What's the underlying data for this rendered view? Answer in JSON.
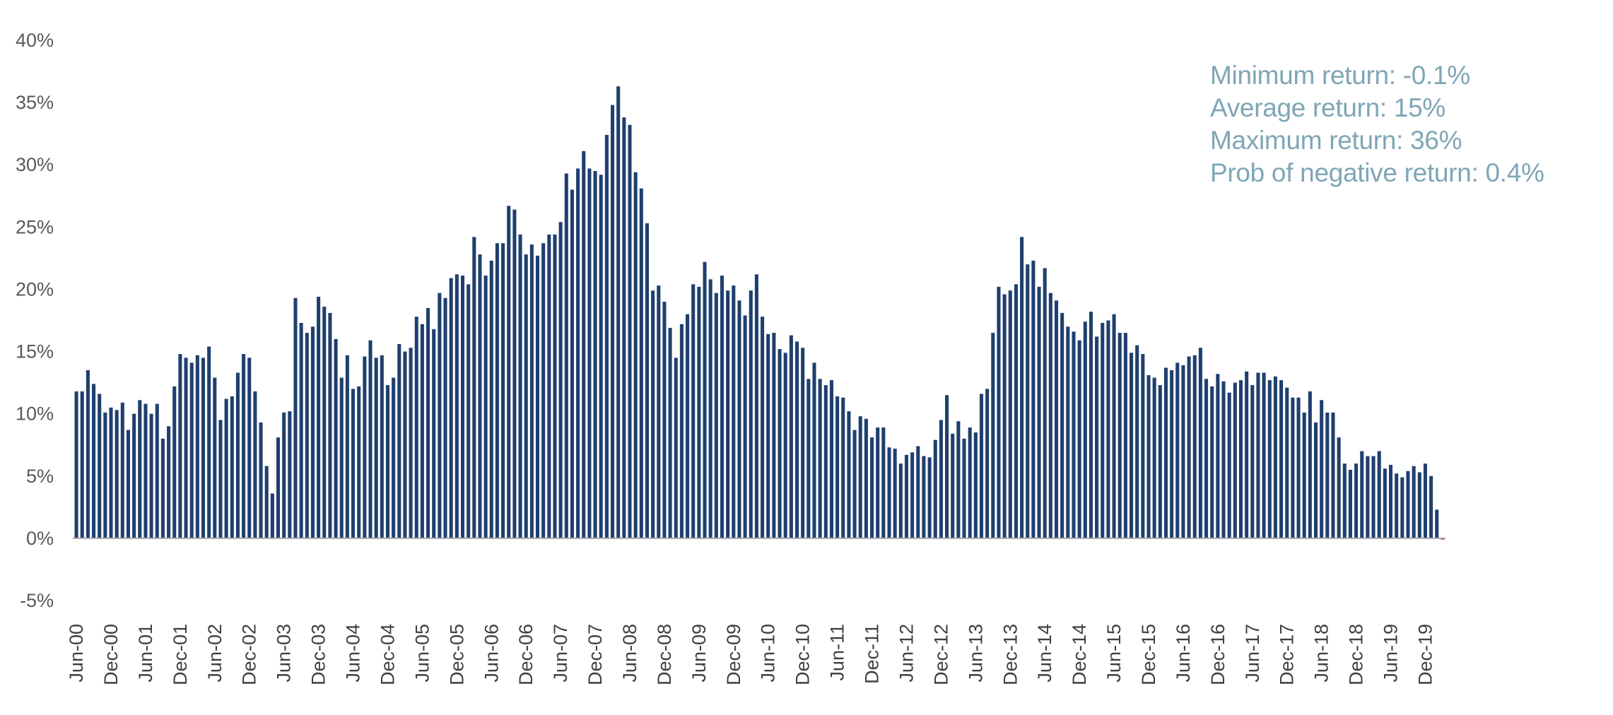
{
  "chart_data": {
    "type": "bar",
    "title": "",
    "xlabel": "",
    "ylabel": "",
    "ylim": [
      -5,
      40
    ],
    "ytick_step": 5,
    "ytick_format": "percent",
    "grid": false,
    "bar_color": "#1f3f6e",
    "axis_color": "#a6a6a6",
    "negative_color": "#c00000",
    "series": [
      {
        "values": [
          11.8,
          11.8,
          13.5,
          12.4,
          11.6,
          10.1,
          10.5,
          10.3,
          10.9,
          8.7,
          10.0,
          11.1,
          10.8,
          10.0,
          10.8,
          8.0,
          9.0,
          12.2,
          14.8,
          14.5,
          14.1,
          14.7,
          14.5,
          15.4,
          12.9,
          9.5,
          11.2,
          11.4,
          13.3,
          14.8,
          14.5,
          11.8,
          9.3,
          5.8,
          3.6,
          8.1,
          10.1,
          10.2,
          19.3,
          17.3,
          16.5,
          17.0,
          19.4,
          18.6,
          18.1,
          16.0,
          12.9,
          14.7,
          12.0,
          12.2,
          14.6,
          15.9,
          14.5,
          14.7,
          12.3,
          12.9,
          15.6,
          15.0,
          15.3,
          17.8,
          17.2,
          18.5,
          16.8,
          19.7,
          19.3,
          20.9,
          21.2,
          21.1,
          20.4,
          24.2,
          22.8,
          21.1,
          22.3,
          23.7,
          23.7,
          26.7,
          26.4,
          24.4,
          22.8,
          23.6,
          22.7,
          23.7,
          24.4,
          24.4,
          25.4,
          29.3,
          28.0,
          29.7,
          31.1,
          29.7,
          29.5,
          29.2,
          32.4,
          34.8,
          36.3,
          33.8,
          33.2,
          29.4,
          28.1,
          25.3,
          19.9,
          20.3,
          19.0,
          16.9,
          14.5,
          17.2,
          18.0,
          20.4,
          20.2,
          22.2,
          20.8,
          19.7,
          21.1,
          19.9,
          20.3,
          19.1,
          17.9,
          19.9,
          21.2,
          17.8,
          16.4,
          16.5,
          15.2,
          14.9,
          16.3,
          15.8,
          15.3,
          12.8,
          14.1,
          12.8,
          12.3,
          12.7,
          11.4,
          11.3,
          10.2,
          8.7,
          9.8,
          9.6,
          8.1,
          8.9,
          8.9,
          7.3,
          7.2,
          6.0,
          6.7,
          6.9,
          7.4,
          6.6,
          6.5,
          7.9,
          9.5,
          11.5,
          8.4,
          9.4,
          8.0,
          8.9,
          8.5,
          11.6,
          12.0,
          16.5,
          20.2,
          19.6,
          19.9,
          20.4,
          24.2,
          22.0,
          22.3,
          20.2,
          21.7,
          19.7,
          19.1,
          18.1,
          17.0,
          16.6,
          15.9,
          17.4,
          18.2,
          16.2,
          17.3,
          17.5,
          18.0,
          16.5,
          16.5,
          14.9,
          15.5,
          14.8,
          13.1,
          12.9,
          12.3,
          13.7,
          13.5,
          14.1,
          13.9,
          14.6,
          14.7,
          15.3,
          12.8,
          12.2,
          13.2,
          12.6,
          11.7,
          12.5,
          12.7,
          13.4,
          12.3,
          13.3,
          13.3,
          12.7,
          13.0,
          12.7,
          12.1,
          11.3,
          11.3,
          10.1,
          11.8,
          9.3,
          11.1,
          10.1,
          10.1,
          8.1,
          6.0,
          5.5,
          6.0,
          7.0,
          6.6,
          6.6,
          7.0,
          5.6,
          5.9,
          5.2,
          4.9,
          5.4,
          5.8,
          5.3,
          6.0,
          5.0,
          2.3,
          -0.1
        ]
      }
    ],
    "x_tick_labels": [
      {
        "index": 0,
        "label": "Jun-00"
      },
      {
        "index": 6,
        "label": "Dec-00"
      },
      {
        "index": 12,
        "label": "Jun-01"
      },
      {
        "index": 18,
        "label": "Dec-01"
      },
      {
        "index": 24,
        "label": "Jun-02"
      },
      {
        "index": 30,
        "label": "Dec-02"
      },
      {
        "index": 36,
        "label": "Jun-03"
      },
      {
        "index": 42,
        "label": "Dec-03"
      },
      {
        "index": 48,
        "label": "Jun-04"
      },
      {
        "index": 54,
        "label": "Dec-04"
      },
      {
        "index": 60,
        "label": "Jun-05"
      },
      {
        "index": 66,
        "label": "Dec-05"
      },
      {
        "index": 72,
        "label": "Jun-06"
      },
      {
        "index": 78,
        "label": "Dec-06"
      },
      {
        "index": 84,
        "label": "Jun-07"
      },
      {
        "index": 90,
        "label": "Dec-07"
      },
      {
        "index": 96,
        "label": "Jun-08"
      },
      {
        "index": 102,
        "label": "Dec-08"
      },
      {
        "index": 108,
        "label": "Jun-09"
      },
      {
        "index": 114,
        "label": "Dec-09"
      },
      {
        "index": 120,
        "label": "Jun-10"
      },
      {
        "index": 126,
        "label": "Dec-10"
      },
      {
        "index": 132,
        "label": "Jun-11"
      },
      {
        "index": 138,
        "label": "Dec-11"
      },
      {
        "index": 144,
        "label": "Jun-12"
      },
      {
        "index": 150,
        "label": "Dec-12"
      },
      {
        "index": 156,
        "label": "Jun-13"
      },
      {
        "index": 162,
        "label": "Dec-13"
      },
      {
        "index": 168,
        "label": "Jun-14"
      },
      {
        "index": 174,
        "label": "Dec-14"
      },
      {
        "index": 180,
        "label": "Jun-15"
      },
      {
        "index": 186,
        "label": "Dec-15"
      },
      {
        "index": 192,
        "label": "Jun-16"
      },
      {
        "index": 198,
        "label": "Dec-16"
      },
      {
        "index": 204,
        "label": "Jun-17"
      },
      {
        "index": 210,
        "label": "Dec-17"
      },
      {
        "index": 216,
        "label": "Jun-18"
      },
      {
        "index": 222,
        "label": "Dec-18"
      },
      {
        "index": 228,
        "label": "Jun-19"
      },
      {
        "index": 234,
        "label": "Dec-19"
      }
    ],
    "annotations": [
      "Minimum return:  -0.1%",
      "Average return:  15%",
      "Maximum return:  36%",
      "Prob of negative return:  0.4%"
    ],
    "annotation_color": "#7ea6b6"
  }
}
